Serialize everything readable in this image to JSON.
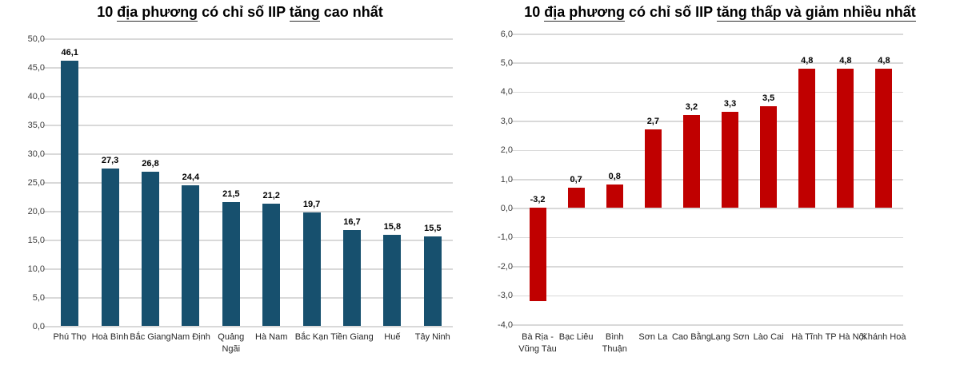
{
  "page": {
    "background": "#ffffff",
    "grid_color": "#d9d9d9",
    "axis_text_color": "#3d3d3d",
    "value_label_color": "#000000"
  },
  "chart_data": [
    {
      "type": "bar",
      "title": "10 địa phương có chỉ số IIP tăng cao nhất",
      "title_parts": [
        {
          "t": "10 "
        },
        {
          "t": "địa phương",
          "u": true
        },
        {
          "t": " có chỉ số IIP "
        },
        {
          "t": "tăng",
          "u": true
        },
        {
          "t": " cao nhất"
        }
      ],
      "categories": [
        [
          "Phú Thọ"
        ],
        [
          "Hoà Bình"
        ],
        [
          "Bắc Giang"
        ],
        [
          "Nam Định"
        ],
        [
          "Quảng Ngãi"
        ],
        [
          "Hà Nam"
        ],
        [
          "Bắc Kạn"
        ],
        [
          "Tiền Giang"
        ],
        [
          "Huế"
        ],
        [
          "Tây Ninh"
        ]
      ],
      "values": [
        46.1,
        27.3,
        26.8,
        24.4,
        21.5,
        21.2,
        19.7,
        16.7,
        15.8,
        15.5
      ],
      "value_labels": [
        "46,1",
        "27,3",
        "26,8",
        "24,4",
        "21,5",
        "21,2",
        "19,7",
        "16,7",
        "15,8",
        "15,5"
      ],
      "bar_color": "#17506e",
      "ylim": [
        0,
        50
      ],
      "ytick_step": 5,
      "ytick_labels": [
        "50,0",
        "45,0",
        "40,0",
        "35,0",
        "30,0",
        "25,0",
        "20,0",
        "15,0",
        "10,0",
        "5,0",
        "0,0"
      ],
      "grid": true,
      "legend": "none",
      "xlabel": "",
      "ylabel": ""
    },
    {
      "type": "bar",
      "title": "10 địa phương có chỉ số IIP tăng thấp và giảm nhiều nhất",
      "title_parts": [
        {
          "t": "10 "
        },
        {
          "t": "địa phương",
          "u": true
        },
        {
          "t": " có chỉ số IIP "
        },
        {
          "t": "tăng thấp và giảm nhiều nhất",
          "u": true
        }
      ],
      "categories": [
        [
          "Bà Rịa -",
          "Vũng Tàu"
        ],
        [
          "Bạc Liêu"
        ],
        [
          "Bình Thuận"
        ],
        [
          "Sơn La"
        ],
        [
          "Cao Bằng"
        ],
        [
          "Lạng Sơn"
        ],
        [
          "Lào Cai"
        ],
        [
          "Hà Tĩnh"
        ],
        [
          "TP Hà Nội"
        ],
        [
          "Khánh Hoà"
        ]
      ],
      "values": [
        -3.2,
        0.7,
        0.8,
        2.7,
        3.2,
        3.3,
        3.5,
        4.8,
        4.8,
        4.8
      ],
      "value_labels": [
        "-3,2",
        "0,7",
        "0,8",
        "2,7",
        "3,2",
        "3,3",
        "3,5",
        "4,8",
        "4,8",
        "4,8"
      ],
      "bar_color": "#c00000",
      "ylim": [
        -4,
        6
      ],
      "ytick_step": 1,
      "ytick_labels": [
        "6,0",
        "5,0",
        "4,0",
        "3,0",
        "2,0",
        "1,0",
        "0,0",
        "-1,0",
        "-2,0",
        "-3,0",
        "-4,0"
      ],
      "grid": true,
      "legend": "none",
      "xlabel": "",
      "ylabel": ""
    }
  ]
}
